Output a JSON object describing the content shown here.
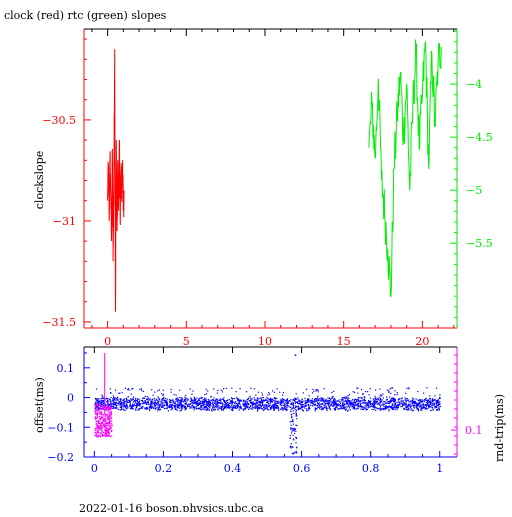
{
  "colors": {
    "axis": "#000000",
    "clock": "#ff0000",
    "rtc": "#00ee00",
    "offset": "#0000ff",
    "rndtrip": "#ff00ff",
    "background": "#ffffff"
  },
  "footer": "2022-01-16 boson.physics.ubc.ca",
  "chart_data": [
    {
      "type": "line",
      "title": "clock (red) rtc (green) slopes",
      "xlabel": "",
      "ylabel": "clockslope",
      "xlim": [
        -1.5,
        22.2
      ],
      "ylim": [
        -31.53,
        -30.05
      ],
      "xticks": [
        0,
        5,
        10,
        15,
        20
      ],
      "yticks": [
        -30.5,
        -31,
        -31.5
      ],
      "right_axis": {
        "ylim": [
          -6.3,
          -3.48
        ],
        "yticks": [
          -4,
          -4.5,
          -5,
          -5.5
        ]
      },
      "series": [
        {
          "axis": "left",
          "color": "red",
          "x": [
            0.0,
            0.05,
            0.1,
            0.15,
            0.2,
            0.25,
            0.3,
            0.35,
            0.4,
            0.45,
            0.5,
            0.55,
            0.6,
            0.65,
            0.7,
            0.75,
            0.8,
            0.85,
            0.9,
            0.95,
            1.0,
            1.05
          ],
          "y": [
            -30.9,
            -30.72,
            -31.0,
            -30.7,
            -30.85,
            -31.1,
            -30.65,
            -31.2,
            -30.8,
            -30.15,
            -31.45,
            -30.6,
            -31.05,
            -30.7,
            -30.95,
            -30.6,
            -31.0,
            -30.75,
            -30.9,
            -30.7,
            -30.95,
            -30.85
          ]
        },
        {
          "axis": "right",
          "color": "green",
          "x": [
            16.6,
            16.8,
            17.0,
            17.2,
            17.4,
            17.6,
            17.8,
            18.0,
            18.2,
            18.4,
            18.6,
            18.8,
            19.0,
            19.2,
            19.4,
            19.6,
            19.8,
            20.0,
            20.2,
            20.4,
            20.6,
            20.8,
            21.0,
            21.2
          ],
          "y": [
            -4.6,
            -4.2,
            -4.7,
            -3.95,
            -4.9,
            -5.2,
            -5.55,
            -6.0,
            -4.8,
            -4.3,
            -3.9,
            -4.5,
            -4.0,
            -5.0,
            -4.2,
            -3.7,
            -4.6,
            -4.1,
            -3.6,
            -4.8,
            -3.7,
            -4.4,
            -3.8,
            -3.65
          ]
        }
      ]
    },
    {
      "type": "scatter",
      "title": "",
      "xlabel": "",
      "ylabel": "offset(ms)",
      "right_ylabel": "rnd-trip(ms)",
      "xlim": [
        -0.03,
        1.05
      ],
      "ylim": [
        -0.2,
        0.17
      ],
      "xticks": [
        0,
        0.2,
        0.4,
        0.6,
        0.8,
        1
      ],
      "yticks": [
        0.1,
        0,
        -0.1,
        -0.2
      ],
      "right_yticks": [
        0.1
      ],
      "series": [
        {
          "name": "offset",
          "color": "blue",
          "band_center": -0.02,
          "band_halfwidth": 0.018,
          "x_range": [
            0,
            1
          ],
          "dip": {
            "x": 0.575,
            "y_min": -0.19
          }
        },
        {
          "name": "rnd-trip",
          "color": "magenta",
          "x_range": [
            0,
            0.05
          ],
          "y_range": [
            -0.13,
            -0.02
          ],
          "spike": {
            "x": 0.03,
            "y": 0.15
          }
        }
      ]
    }
  ]
}
